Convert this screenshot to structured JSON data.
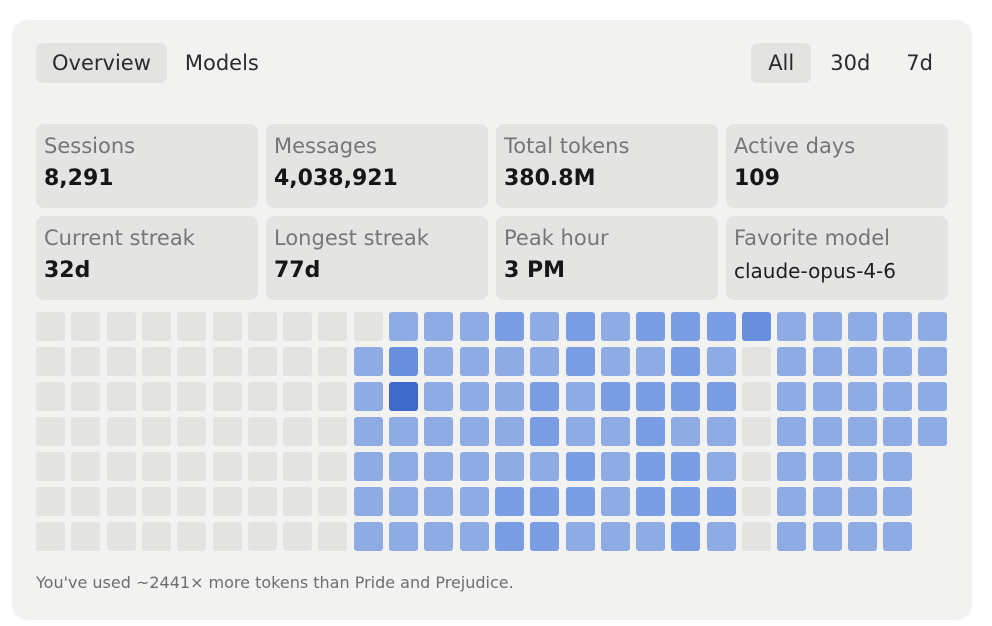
{
  "tabs": {
    "view": [
      {
        "label": "Overview",
        "active": true
      },
      {
        "label": "Models",
        "active": false
      }
    ],
    "range": [
      {
        "label": "All",
        "active": true
      },
      {
        "label": "30d",
        "active": false
      },
      {
        "label": "7d",
        "active": false
      }
    ]
  },
  "stats": [
    {
      "label": "Sessions",
      "value": "8,291"
    },
    {
      "label": "Messages",
      "value": "4,038,921"
    },
    {
      "label": "Total tokens",
      "value": "380.8M"
    },
    {
      "label": "Active days",
      "value": "109"
    },
    {
      "label": "Current streak",
      "value": "32d"
    },
    {
      "label": "Longest streak",
      "value": "77d"
    },
    {
      "label": "Peak hour",
      "value": "3 PM"
    },
    {
      "label": "Favorite model",
      "value": "claude-opus-4-6"
    }
  ],
  "colors": {
    "card_bg": "#f2f2f1",
    "tab_active_bg": "#e3e3e2",
    "stat_bg": "#e4e4e3",
    "level_0": "#e3e3e2",
    "level_1": "#8fabe3",
    "level_2": "#7a9de3",
    "level_3": "#6b8fdf",
    "level_4": "#3f68cb"
  },
  "activity_grid": {
    "rows": [
      [
        0,
        0,
        0,
        0,
        0,
        0,
        0,
        0,
        0,
        0,
        1,
        1,
        1,
        2,
        1,
        2,
        1,
        2,
        2,
        2,
        3,
        1,
        1,
        1,
        1,
        1
      ],
      [
        0,
        0,
        0,
        0,
        0,
        0,
        0,
        0,
        0,
        1,
        3,
        1,
        1,
        1,
        1,
        2,
        1,
        1,
        2,
        1,
        0,
        1,
        1,
        1,
        1,
        1
      ],
      [
        0,
        0,
        0,
        0,
        0,
        0,
        0,
        0,
        0,
        1,
        4,
        1,
        1,
        1,
        2,
        1,
        2,
        2,
        2,
        2,
        0,
        1,
        1,
        1,
        1,
        1
      ],
      [
        0,
        0,
        0,
        0,
        0,
        0,
        0,
        0,
        0,
        1,
        1,
        1,
        1,
        1,
        2,
        1,
        1,
        2,
        1,
        1,
        0,
        1,
        1,
        1,
        1,
        1
      ],
      [
        0,
        0,
        0,
        0,
        0,
        0,
        0,
        0,
        0,
        1,
        1,
        1,
        1,
        1,
        1,
        2,
        1,
        2,
        2,
        1,
        0,
        1,
        1,
        1,
        1,
        -1
      ],
      [
        0,
        0,
        0,
        0,
        0,
        0,
        0,
        0,
        0,
        1,
        1,
        1,
        1,
        2,
        2,
        2,
        1,
        2,
        2,
        2,
        0,
        1,
        1,
        1,
        1,
        -1
      ],
      [
        0,
        0,
        0,
        0,
        0,
        0,
        0,
        0,
        0,
        1,
        1,
        1,
        1,
        2,
        2,
        1,
        1,
        1,
        2,
        1,
        0,
        1,
        1,
        1,
        1,
        -1
      ]
    ]
  },
  "footer": {
    "text": "You've used ~2441× more tokens than Pride and Prejudice."
  }
}
